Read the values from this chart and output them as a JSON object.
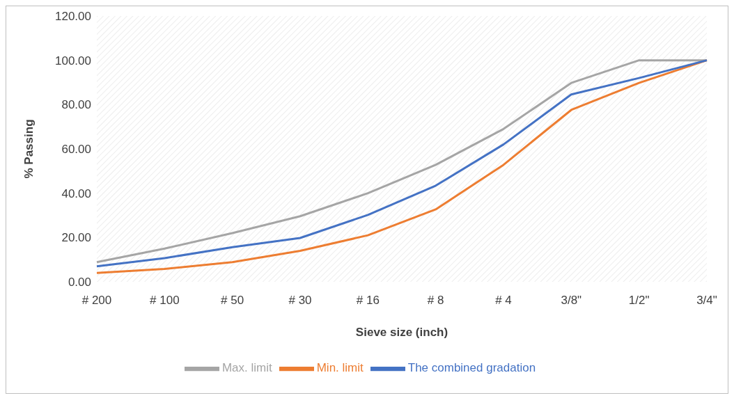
{
  "chart_data": {
    "type": "line",
    "xlabel": "Sieve size (inch)",
    "ylabel": "% Passing",
    "categories": [
      "# 200",
      "# 100",
      "# 50",
      "# 30",
      "# 16",
      "# 8",
      "# 4",
      "3/8\"",
      "1/2\"",
      "3/4\""
    ],
    "series": [
      {
        "name": "The combined gradation",
        "color": "#4472c4",
        "values": [
          7.0,
          10.7,
          15.6,
          19.8,
          30.2,
          43.4,
          62.0,
          84.6,
          92.0,
          100
        ]
      },
      {
        "name": "Min. limit",
        "color": "#ed7d31",
        "values": [
          4.0,
          5.8,
          8.9,
          14.0,
          21.0,
          32.7,
          52.8,
          77.6,
          89.8,
          100
        ]
      },
      {
        "name": "Max. limit",
        "color": "#a5a5a5",
        "values": [
          8.9,
          15.0,
          22.0,
          29.6,
          40.0,
          52.8,
          69.0,
          89.8,
          100,
          100
        ]
      }
    ],
    "ylim": [
      0,
      120
    ],
    "yticks": [
      {
        "value": 0,
        "label": "0.00"
      },
      {
        "value": 20,
        "label": "20.00"
      },
      {
        "value": 40,
        "label": "40.00"
      },
      {
        "value": 60,
        "label": "60.00"
      },
      {
        "value": 80,
        "label": "80.00"
      },
      {
        "value": 100,
        "label": "100.00"
      },
      {
        "value": 120,
        "label": "120.00"
      }
    ],
    "grid": false,
    "legend": "bottom",
    "marker": "none",
    "line_style": "solid"
  }
}
